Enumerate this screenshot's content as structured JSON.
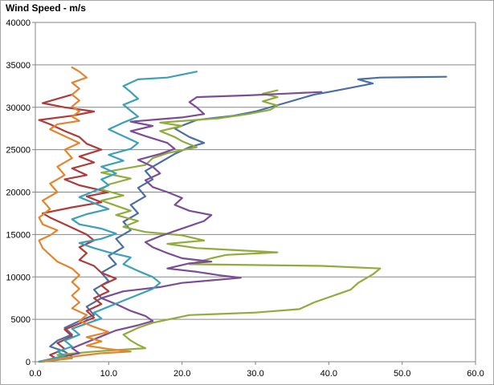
{
  "chart_data": {
    "type": "line",
    "orientation": "profile",
    "title": "Wind Speed - m/s",
    "xlabel": "",
    "ylabel": "",
    "xlim": [
      0,
      60
    ],
    "ylim": [
      0,
      40000
    ],
    "xticks": [
      0,
      10,
      20,
      30,
      40,
      50,
      60
    ],
    "yticks": [
      0,
      5000,
      10000,
      15000,
      20000,
      25000,
      30000,
      35000,
      40000
    ],
    "xtick_labels": [
      "0.0",
      "10.0",
      "20.0",
      "30.0",
      "40.0",
      "50.0",
      "60.0"
    ],
    "ytick_labels": [
      "0",
      "5000",
      "10000",
      "15000",
      "20000",
      "25000",
      "30000",
      "35000",
      "40000"
    ],
    "grid": "horizontal",
    "legend": "none",
    "series": [
      {
        "color": "#4a6fa5",
        "points": [
          [
            0.5,
            0
          ],
          [
            3,
            200
          ],
          [
            5,
            600
          ],
          [
            4,
            1200
          ],
          [
            2,
            1800
          ],
          [
            3,
            2500
          ],
          [
            5,
            3200
          ],
          [
            4,
            4000
          ],
          [
            6,
            4800
          ],
          [
            8,
            5500
          ],
          [
            7,
            6500
          ],
          [
            9,
            7500
          ],
          [
            8,
            8500
          ],
          [
            10,
            9500
          ],
          [
            9,
            10500
          ],
          [
            11,
            11500
          ],
          [
            10,
            12500
          ],
          [
            12,
            13500
          ],
          [
            11,
            14500
          ],
          [
            13,
            15500
          ],
          [
            12,
            16500
          ],
          [
            14,
            17500
          ],
          [
            13,
            18500
          ],
          [
            15,
            19500
          ],
          [
            14,
            20500
          ],
          [
            16,
            21500
          ],
          [
            15,
            22500
          ],
          [
            17,
            23500
          ],
          [
            19,
            24500
          ],
          [
            21,
            25300
          ],
          [
            23,
            25800
          ],
          [
            21,
            26500
          ],
          [
            19,
            27500
          ],
          [
            22,
            28500
          ],
          [
            27,
            29000
          ],
          [
            30,
            29500
          ],
          [
            34,
            30500
          ],
          [
            38,
            31500
          ],
          [
            40,
            31800
          ],
          [
            43,
            32300
          ],
          [
            46,
            32800
          ],
          [
            44,
            33300
          ],
          [
            47,
            33500
          ],
          [
            56,
            33600
          ]
        ]
      },
      {
        "color": "#b03a3a",
        "points": [
          [
            1,
            0
          ],
          [
            3,
            300
          ],
          [
            2,
            800
          ],
          [
            4,
            1500
          ],
          [
            3,
            2200
          ],
          [
            5,
            3000
          ],
          [
            4,
            3800
          ],
          [
            6,
            4500
          ],
          [
            8,
            5200
          ],
          [
            7,
            6000
          ],
          [
            9,
            6800
          ],
          [
            8,
            7500
          ],
          [
            10,
            8300
          ],
          [
            9,
            9000
          ],
          [
            11,
            9800
          ],
          [
            9,
            10500
          ],
          [
            8,
            11300
          ],
          [
            6,
            12000
          ],
          [
            7,
            12800
          ],
          [
            6,
            13500
          ],
          [
            8,
            14300
          ],
          [
            7,
            15000
          ],
          [
            5,
            15800
          ],
          [
            2,
            17000
          ],
          [
            1,
            17500
          ],
          [
            5,
            18200
          ],
          [
            9,
            18800
          ],
          [
            7,
            19500
          ],
          [
            10,
            20000
          ],
          [
            6,
            20800
          ],
          [
            4,
            21500
          ],
          [
            7,
            22000
          ],
          [
            5,
            22800
          ],
          [
            8,
            23500
          ],
          [
            6,
            24200
          ],
          [
            9,
            25000
          ],
          [
            7,
            25700
          ],
          [
            6,
            26500
          ],
          [
            4,
            27200
          ],
          [
            2,
            28000
          ],
          [
            0.5,
            28500
          ],
          [
            5,
            29000
          ],
          [
            8,
            29500
          ],
          [
            4,
            30000
          ],
          [
            1,
            30500
          ],
          [
            3,
            31000
          ],
          [
            5,
            31500
          ]
        ]
      },
      {
        "color": "#8fac3c",
        "points": [
          [
            0.5,
            0
          ],
          [
            5,
            400
          ],
          [
            3,
            800
          ],
          [
            8,
            1200
          ],
          [
            15,
            1600
          ],
          [
            14,
            2000
          ],
          [
            13,
            2500
          ],
          [
            12,
            3200
          ],
          [
            14,
            4000
          ],
          [
            16,
            4600
          ],
          [
            21,
            5500
          ],
          [
            30,
            5800
          ],
          [
            36,
            6200
          ],
          [
            38,
            7000
          ],
          [
            43,
            8500
          ],
          [
            44,
            9300
          ],
          [
            46,
            10300
          ],
          [
            47,
            11000
          ],
          [
            39,
            11300
          ],
          [
            21,
            11500
          ],
          [
            24,
            12200
          ],
          [
            26,
            12600
          ],
          [
            33,
            12900
          ],
          [
            22,
            13400
          ],
          [
            18,
            13900
          ],
          [
            23,
            14300
          ],
          [
            20,
            14900
          ],
          [
            15,
            15300
          ],
          [
            12,
            15900
          ],
          [
            14,
            16600
          ],
          [
            11,
            17300
          ],
          [
            13,
            17800
          ],
          [
            11,
            18400
          ],
          [
            9,
            19000
          ],
          [
            12,
            19600
          ],
          [
            9,
            20300
          ],
          [
            10,
            20900
          ],
          [
            13,
            21600
          ],
          [
            9,
            22300
          ],
          [
            15,
            23200
          ],
          [
            16,
            24000
          ],
          [
            18,
            24600
          ],
          [
            22,
            25300
          ],
          [
            20,
            26000
          ],
          [
            19,
            26500
          ],
          [
            17,
            27200
          ],
          [
            20,
            27800
          ],
          [
            17,
            28200
          ],
          [
            25,
            28700
          ],
          [
            29,
            29200
          ],
          [
            32,
            29700
          ],
          [
            33,
            30200
          ],
          [
            31,
            30700
          ],
          [
            33,
            31200
          ],
          [
            31,
            31600
          ],
          [
            33,
            32000
          ]
        ]
      },
      {
        "color": "#7b4d96",
        "points": [
          [
            0.5,
            0
          ],
          [
            3,
            500
          ],
          [
            6,
            1000
          ],
          [
            5,
            1600
          ],
          [
            7,
            2300
          ],
          [
            9,
            3000
          ],
          [
            11,
            3700
          ],
          [
            14,
            4300
          ],
          [
            16,
            4800
          ],
          [
            15,
            5400
          ],
          [
            13,
            6000
          ],
          [
            11,
            6800
          ],
          [
            9,
            7500
          ],
          [
            12,
            8300
          ],
          [
            17,
            8800
          ],
          [
            20,
            9300
          ],
          [
            24,
            9600
          ],
          [
            28,
            9900
          ],
          [
            25,
            10200
          ],
          [
            22,
            10600
          ],
          [
            18,
            11000
          ],
          [
            21,
            11600
          ],
          [
            24,
            11800
          ],
          [
            20,
            12200
          ],
          [
            18,
            12800
          ],
          [
            16,
            13500
          ],
          [
            15,
            14100
          ],
          [
            17,
            14800
          ],
          [
            19,
            15400
          ],
          [
            21,
            16000
          ],
          [
            23,
            16600
          ],
          [
            24,
            17300
          ],
          [
            21,
            17800
          ],
          [
            19,
            18500
          ],
          [
            20,
            19300
          ],
          [
            18,
            20000
          ],
          [
            16,
            20600
          ],
          [
            15,
            21400
          ],
          [
            17,
            22200
          ],
          [
            16,
            23000
          ],
          [
            14,
            23800
          ],
          [
            17,
            24500
          ],
          [
            19,
            25100
          ],
          [
            18,
            25800
          ],
          [
            15,
            26600
          ],
          [
            13,
            27200
          ],
          [
            16,
            27800
          ],
          [
            13,
            28300
          ],
          [
            17,
            28600
          ],
          [
            20,
            28800
          ],
          [
            23,
            29200
          ],
          [
            22,
            30000
          ],
          [
            21,
            30600
          ],
          [
            22,
            31200
          ],
          [
            29,
            31400
          ],
          [
            34,
            31600
          ],
          [
            39,
            31800
          ]
        ]
      },
      {
        "color": "#3ba0b8",
        "points": [
          [
            0.5,
            0
          ],
          [
            2,
            300
          ],
          [
            4,
            700
          ],
          [
            3,
            1200
          ],
          [
            5,
            1800
          ],
          [
            4,
            2500
          ],
          [
            6,
            3200
          ],
          [
            5,
            3900
          ],
          [
            7,
            4500
          ],
          [
            9,
            5100
          ],
          [
            8,
            5800
          ],
          [
            10,
            6500
          ],
          [
            12,
            7200
          ],
          [
            14,
            7900
          ],
          [
            16,
            8600
          ],
          [
            17,
            9300
          ],
          [
            16,
            10000
          ],
          [
            14,
            10700
          ],
          [
            12,
            11500
          ],
          [
            13,
            12300
          ],
          [
            10,
            12900
          ],
          [
            8,
            13400
          ],
          [
            6,
            14000
          ],
          [
            9,
            14500
          ],
          [
            11,
            15100
          ],
          [
            9,
            15700
          ],
          [
            6,
            16200
          ],
          [
            5,
            16800
          ],
          [
            7,
            17400
          ],
          [
            10,
            18000
          ],
          [
            8,
            18700
          ],
          [
            6,
            19400
          ],
          [
            8,
            20100
          ],
          [
            10,
            20800
          ],
          [
            9,
            21500
          ],
          [
            11,
            22200
          ],
          [
            9,
            23000
          ],
          [
            12,
            23700
          ],
          [
            10,
            24400
          ],
          [
            13,
            25100
          ],
          [
            14,
            25800
          ],
          [
            12,
            26600
          ],
          [
            10,
            27400
          ],
          [
            12,
            28200
          ],
          [
            14,
            28900
          ],
          [
            13,
            29600
          ],
          [
            12,
            30300
          ],
          [
            14,
            31000
          ],
          [
            13,
            31800
          ],
          [
            12,
            32500
          ],
          [
            14,
            33300
          ],
          [
            18,
            33500
          ],
          [
            22,
            34200
          ]
        ]
      },
      {
        "color": "#e3852e",
        "points": [
          [
            1,
            0
          ],
          [
            3,
            300
          ],
          [
            6,
            700
          ],
          [
            9,
            1000
          ],
          [
            13,
            1200
          ],
          [
            10,
            1500
          ],
          [
            7,
            1900
          ],
          [
            9,
            2400
          ],
          [
            7,
            2900
          ],
          [
            10,
            3500
          ],
          [
            8,
            4100
          ],
          [
            6,
            4800
          ],
          [
            7,
            5500
          ],
          [
            5,
            6300
          ],
          [
            6,
            7000
          ],
          [
            5,
            7800
          ],
          [
            6,
            8600
          ],
          [
            5,
            9400
          ],
          [
            6,
            10200
          ],
          [
            5,
            11000
          ],
          [
            3,
            11800
          ],
          [
            2,
            12600
          ],
          [
            1,
            13400
          ],
          [
            0.5,
            14300
          ],
          [
            2,
            14900
          ],
          [
            3,
            15500
          ],
          [
            1,
            16200
          ],
          [
            0.5,
            17000
          ],
          [
            2,
            18000
          ],
          [
            1,
            19000
          ],
          [
            3,
            20000
          ],
          [
            2,
            21000
          ],
          [
            4,
            22000
          ],
          [
            3,
            23000
          ],
          [
            5,
            24000
          ],
          [
            4,
            25000
          ],
          [
            6,
            25800
          ],
          [
            4,
            26600
          ],
          [
            2,
            27400
          ],
          [
            3,
            28000
          ],
          [
            6,
            28400
          ],
          [
            5,
            28900
          ],
          [
            6,
            29500
          ],
          [
            5,
            30100
          ],
          [
            6,
            30800
          ],
          [
            5,
            31500
          ],
          [
            6,
            32200
          ],
          [
            5,
            32900
          ],
          [
            7,
            33500
          ],
          [
            6,
            34200
          ],
          [
            5,
            34700
          ]
        ]
      }
    ]
  }
}
